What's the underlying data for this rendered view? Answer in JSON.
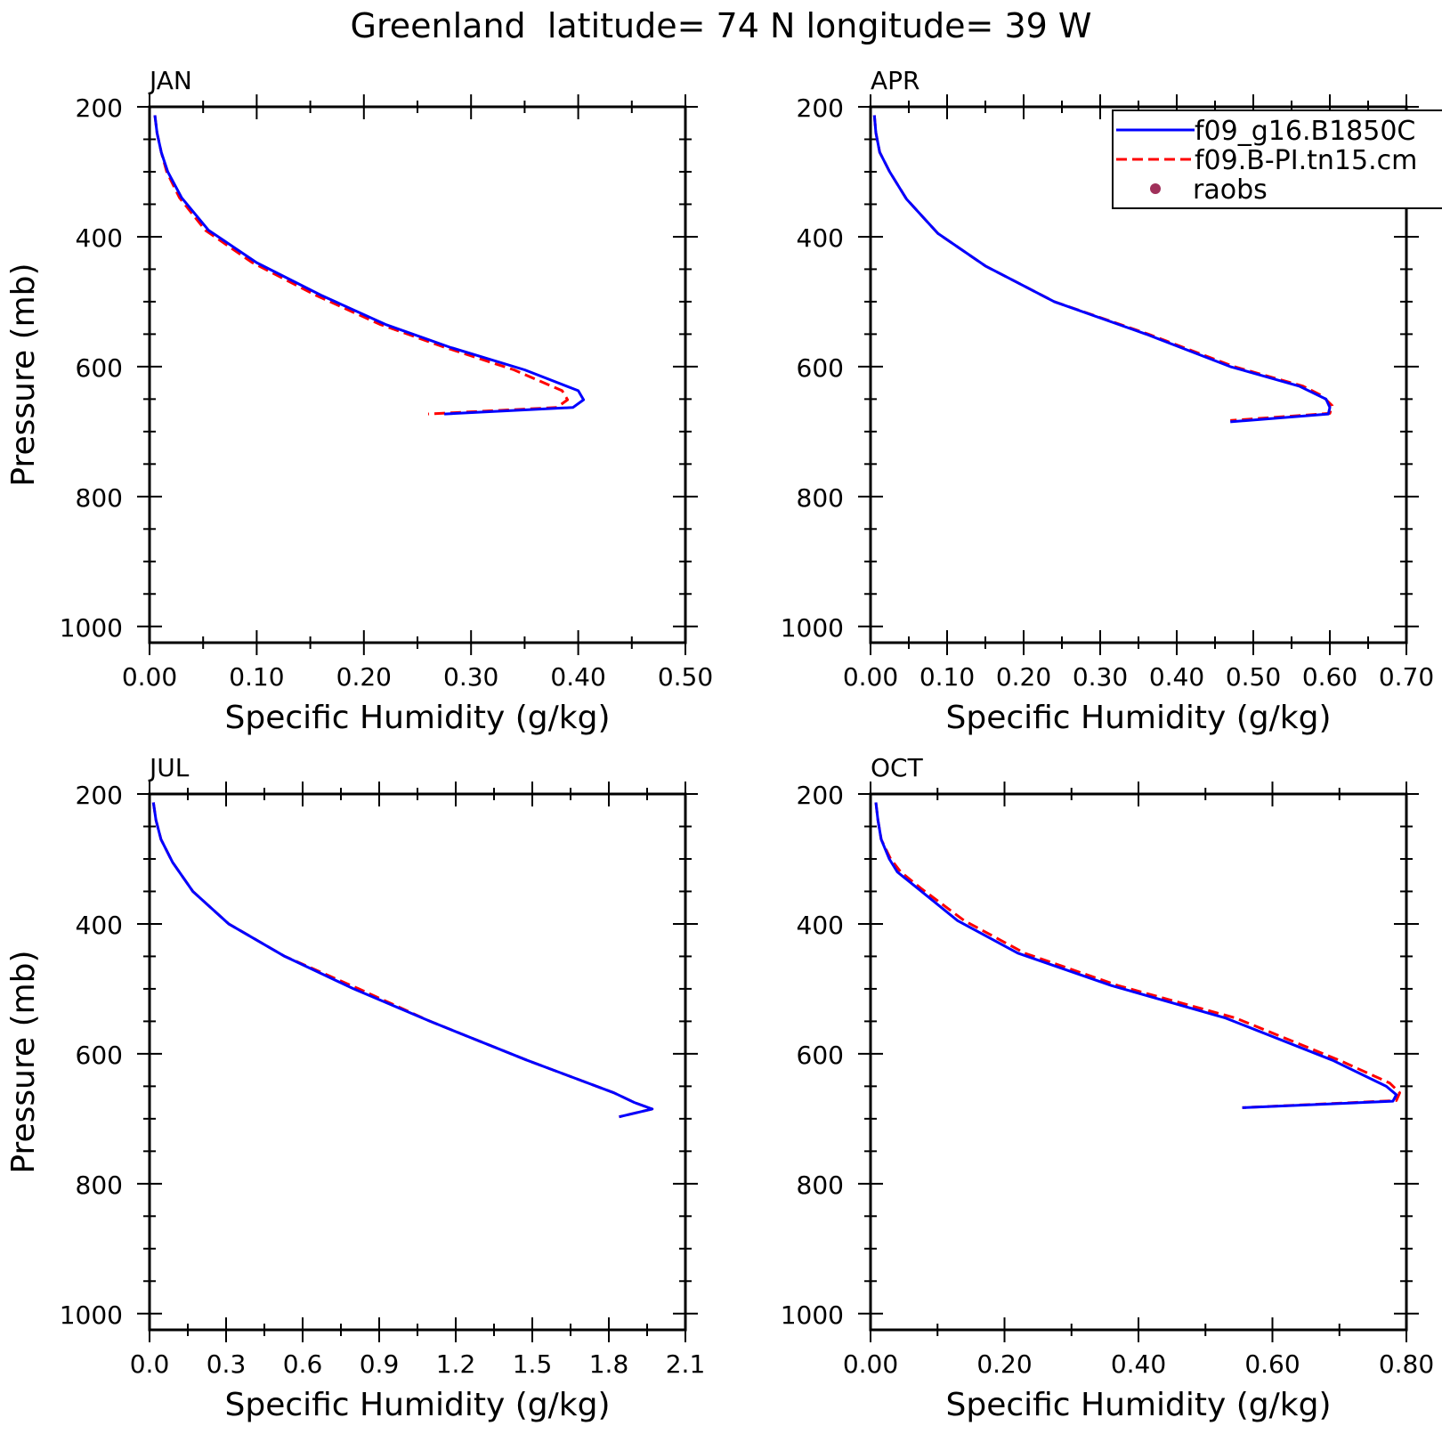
{
  "figure": {
    "title": "Greenland  latitude= 74 N longitude= 39 W"
  },
  "legend": {
    "entries": [
      {
        "label": "f09_g16.B1850C",
        "color": "#0000ff",
        "style": "solid"
      },
      {
        "label": "f09.B-PI.tn15.cm",
        "color": "#ff0000",
        "style": "dashed"
      },
      {
        "label": "raobs",
        "color": "#a0305a",
        "style": "marker"
      }
    ]
  },
  "chart_data": [
    {
      "type": "line",
      "panel_label": "JAN",
      "xlabel": "Specific Humidity (g/kg)",
      "ylabel": "Pressure (mb)",
      "xlim": [
        0,
        0.5
      ],
      "ylim": [
        200,
        1025
      ],
      "y_inverted": true,
      "xticks": [
        "0.00",
        "0.10",
        "0.20",
        "0.30",
        "0.40",
        "0.50"
      ],
      "xtick_values": [
        0,
        0.1,
        0.2,
        0.3,
        0.4,
        0.5
      ],
      "yticks": [
        "200",
        "400",
        "600",
        "800",
        "1000"
      ],
      "ytick_values": [
        200,
        400,
        600,
        800,
        1000
      ],
      "series": [
        {
          "name": "f09_g16.B1850C",
          "color": "#0000ff",
          "dash": "solid",
          "x": [
            0.005,
            0.007,
            0.011,
            0.017,
            0.03,
            0.055,
            0.1,
            0.16,
            0.22,
            0.28,
            0.35,
            0.4,
            0.405,
            0.395,
            0.275
          ],
          "y": [
            213,
            240,
            270,
            300,
            340,
            390,
            440,
            490,
            535,
            570,
            605,
            637,
            651,
            663,
            673
          ]
        },
        {
          "name": "f09.B-PI.tn15.cm",
          "color": "#ff0000",
          "dash": "dashed",
          "x": [
            0.005,
            0.007,
            0.011,
            0.016,
            0.028,
            0.052,
            0.096,
            0.155,
            0.215,
            0.275,
            0.34,
            0.385,
            0.39,
            0.38,
            0.26
          ],
          "y": [
            213,
            240,
            270,
            300,
            340,
            390,
            440,
            490,
            535,
            570,
            605,
            637,
            651,
            663,
            673
          ]
        }
      ]
    },
    {
      "type": "line",
      "panel_label": "APR",
      "xlabel": "Specific Humidity (g/kg)",
      "ylabel": "",
      "xlim": [
        0,
        0.7
      ],
      "ylim": [
        200,
        1025
      ],
      "y_inverted": true,
      "xticks": [
        "0.00",
        "0.10",
        "0.20",
        "0.30",
        "0.40",
        "0.50",
        "0.60",
        "0.70"
      ],
      "xtick_values": [
        0,
        0.1,
        0.2,
        0.3,
        0.4,
        0.5,
        0.6,
        0.7
      ],
      "yticks": [
        "200",
        "400",
        "600",
        "800",
        "1000"
      ],
      "ytick_values": [
        200,
        400,
        600,
        800,
        1000
      ],
      "series": [
        {
          "name": "f09_g16.B1850C",
          "color": "#0000ff",
          "dash": "solid",
          "x": [
            0.005,
            0.007,
            0.012,
            0.025,
            0.047,
            0.088,
            0.15,
            0.24,
            0.36,
            0.47,
            0.56,
            0.595,
            0.6,
            0.598,
            0.47
          ],
          "y": [
            213,
            240,
            270,
            300,
            342,
            395,
            445,
            500,
            550,
            600,
            630,
            650,
            663,
            673,
            685
          ]
        },
        {
          "name": "f09.B-PI.tn15.cm",
          "color": "#ff0000",
          "dash": "dashed",
          "x": [
            0.005,
            0.007,
            0.012,
            0.025,
            0.047,
            0.088,
            0.15,
            0.24,
            0.363,
            0.475,
            0.565,
            0.59,
            0.603,
            0.6,
            0.47
          ],
          "y": [
            213,
            240,
            270,
            300,
            342,
            395,
            445,
            500,
            550,
            600,
            630,
            645,
            660,
            672,
            683
          ]
        }
      ]
    },
    {
      "type": "line",
      "panel_label": "JUL",
      "xlabel": "Specific Humidity (g/kg)",
      "ylabel": "Pressure (mb)",
      "xlim": [
        0,
        2.1
      ],
      "ylim": [
        200,
        1025
      ],
      "y_inverted": true,
      "xticks": [
        "0.0",
        "0.3",
        "0.6",
        "0.9",
        "1.2",
        "1.5",
        "1.8",
        "2.1"
      ],
      "xtick_values": [
        0,
        0.3,
        0.6,
        0.9,
        1.2,
        1.5,
        1.8,
        2.1
      ],
      "yticks": [
        "200",
        "400",
        "600",
        "800",
        "1000"
      ],
      "ytick_values": [
        200,
        400,
        600,
        800,
        1000
      ],
      "series": [
        {
          "name": "f09_g16.B1850C",
          "color": "#0000ff",
          "dash": "solid",
          "x": [
            0.015,
            0.025,
            0.045,
            0.09,
            0.17,
            0.31,
            0.53,
            0.8,
            1.1,
            1.48,
            1.82,
            1.9,
            1.97,
            1.84
          ],
          "y": [
            213,
            240,
            270,
            305,
            350,
            400,
            450,
            500,
            550,
            610,
            660,
            675,
            685,
            697
          ]
        },
        {
          "name": "f09.B-PI.tn15.cm",
          "color": "#ff0000",
          "dash": "dashed",
          "x": [
            0.015,
            0.025,
            0.045,
            0.09,
            0.17,
            0.31,
            0.53,
            0.82,
            1.1,
            1.48,
            1.82,
            1.9,
            1.97,
            1.84
          ],
          "y": [
            213,
            240,
            270,
            305,
            350,
            400,
            450,
            500,
            550,
            610,
            660,
            675,
            685,
            697
          ]
        }
      ]
    },
    {
      "type": "line",
      "panel_label": "OCT",
      "xlabel": "Specific Humidity (g/kg)",
      "ylabel": "",
      "xlim": [
        0,
        0.8
      ],
      "ylim": [
        200,
        1025
      ],
      "y_inverted": true,
      "xticks": [
        "0.00",
        "0.20",
        "0.40",
        "0.60",
        "0.80"
      ],
      "xtick_values": [
        0,
        0.2,
        0.4,
        0.6,
        0.8
      ],
      "yticks": [
        "200",
        "400",
        "600",
        "800",
        "1000"
      ],
      "ytick_values": [
        200,
        400,
        600,
        800,
        1000
      ],
      "series": [
        {
          "name": "f09_g16.B1850C",
          "color": "#0000ff",
          "dash": "solid",
          "x": [
            0.008,
            0.011,
            0.016,
            0.028,
            0.04,
            0.07,
            0.13,
            0.22,
            0.36,
            0.53,
            0.69,
            0.77,
            0.785,
            0.78,
            0.555
          ],
          "y": [
            213,
            240,
            270,
            300,
            320,
            345,
            395,
            445,
            495,
            545,
            610,
            650,
            663,
            673,
            683
          ]
        },
        {
          "name": "f09.B-PI.tn15.cm",
          "color": "#ff0000",
          "dash": "dashed",
          "x": [
            0.008,
            0.011,
            0.016,
            0.03,
            0.045,
            0.075,
            0.14,
            0.23,
            0.37,
            0.545,
            0.7,
            0.775,
            0.79,
            0.785,
            0.555
          ],
          "y": [
            213,
            240,
            270,
            300,
            320,
            345,
            395,
            445,
            495,
            545,
            610,
            645,
            660,
            672,
            683
          ]
        }
      ]
    }
  ]
}
